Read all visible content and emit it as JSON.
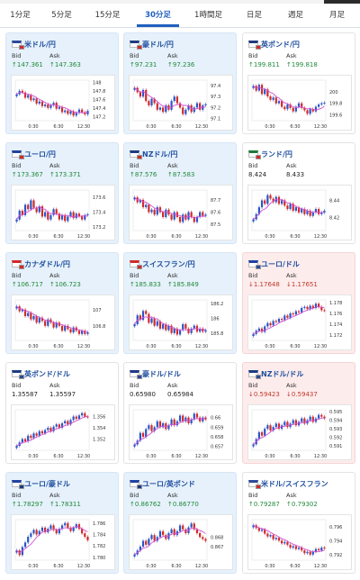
{
  "tabs": [
    {
      "label": "1分足",
      "active": false
    },
    {
      "label": "5分足",
      "active": false
    },
    {
      "label": "15分足",
      "active": false
    },
    {
      "label": "30分足",
      "active": true
    },
    {
      "label": "1時間足",
      "active": false
    },
    {
      "label": "日足",
      "active": false
    },
    {
      "label": "週足",
      "active": false
    },
    {
      "label": "月足",
      "active": false
    }
  ],
  "labels": {
    "bid": "Bid",
    "ask": "Ask"
  },
  "colors": {
    "up": "#1f8a3a",
    "down": "#c0392b",
    "candle_up": "#2a55c6",
    "candle_down": "#d22a2a",
    "ma": "#d24fd2"
  },
  "cards": [
    {
      "name": "米ドル/円",
      "bid": "↑147.361",
      "ask": "↑147.363",
      "dir": "up",
      "theme": "blue",
      "flag": "us-jp",
      "chart": {
        "yticks": [
          "148",
          "147.8",
          "147.6",
          "147.4",
          "147.2"
        ],
        "xticks": [
          "0:30",
          "6:30",
          "12:30"
        ],
        "closes": [
          147.72,
          147.8,
          147.76,
          147.64,
          147.7,
          147.58,
          147.62,
          147.5,
          147.55,
          147.44,
          147.48,
          147.4,
          147.46,
          147.52,
          147.38,
          147.42,
          147.3,
          147.34,
          147.26,
          147.32,
          147.22,
          147.28,
          147.36,
          147.3,
          147.25,
          147.33
        ],
        "ylim": [
          147.1,
          148.05
        ]
      }
    },
    {
      "name": "豪ドル/円",
      "bid": "↑97.231",
      "ask": "↑97.236",
      "dir": "up",
      "theme": "blue",
      "flag": "au-jp",
      "chart": {
        "yticks": [
          "97.4",
          "97.3",
          "97.2",
          "97.1"
        ],
        "xticks": [
          "0:30",
          "6:30",
          "12:30"
        ],
        "closes": [
          97.38,
          97.34,
          97.3,
          97.36,
          97.26,
          97.22,
          97.28,
          97.24,
          97.18,
          97.2,
          97.16,
          97.22,
          97.18,
          97.26,
          97.3,
          97.24,
          97.2,
          97.14,
          97.18,
          97.22,
          97.16,
          97.2,
          97.24,
          97.18,
          97.22,
          97.23
        ],
        "ylim": [
          97.08,
          97.45
        ]
      }
    },
    {
      "name": "英ポンド/円",
      "bid": "↑199.811",
      "ask": "↑199.818",
      "dir": "up",
      "theme": "white",
      "flag": "gb-jp",
      "chart": {
        "yticks": [
          "200",
          "199.8",
          "199.6"
        ],
        "xticks": [
          "0:30",
          "6:30",
          "12:30"
        ],
        "closes": [
          200.1,
          200.02,
          200.12,
          199.96,
          200.04,
          199.92,
          199.86,
          199.9,
          199.8,
          199.84,
          199.74,
          199.7,
          199.78,
          199.72,
          199.66,
          199.74,
          199.8,
          199.72,
          199.68,
          199.62,
          199.7,
          199.66,
          199.74,
          199.78,
          199.8,
          199.81
        ],
        "ylim": [
          199.5,
          200.2
        ]
      }
    },
    {
      "name": "ユーロ/円",
      "bid": "↑173.367",
      "ask": "↑173.371",
      "dir": "up",
      "theme": "blue",
      "flag": "eu-jp",
      "chart": {
        "yticks": [
          "173.6",
          "173.4",
          "173.2"
        ],
        "xticks": [
          "0:30",
          "6:30",
          "12:30"
        ],
        "closes": [
          173.3,
          173.42,
          173.36,
          173.5,
          173.44,
          173.56,
          173.46,
          173.4,
          173.48,
          173.34,
          173.4,
          173.3,
          173.36,
          173.44,
          173.38,
          173.3,
          173.36,
          173.28,
          173.34,
          173.4,
          173.32,
          173.38,
          173.34,
          173.3,
          173.36,
          173.37
        ],
        "ylim": [
          173.15,
          173.7
        ]
      }
    },
    {
      "name": "NZドル/円",
      "bid": "↑87.576",
      "ask": "↑87.583",
      "dir": "up",
      "theme": "blue",
      "flag": "nz-jp",
      "chart": {
        "yticks": [
          "87.7",
          "87.6",
          "87.5"
        ],
        "xticks": [
          "0:30",
          "6:30",
          "12:30"
        ],
        "closes": [
          87.72,
          87.68,
          87.7,
          87.64,
          87.66,
          87.6,
          87.62,
          87.58,
          87.64,
          87.6,
          87.56,
          87.62,
          87.58,
          87.54,
          87.6,
          87.56,
          87.52,
          87.58,
          87.54,
          87.6,
          87.56,
          87.52,
          87.56,
          87.6,
          87.57,
          87.58
        ],
        "ylim": [
          87.45,
          87.78
        ]
      }
    },
    {
      "name": "ランド/円",
      "bid": "8.424",
      "ask": "8.433",
      "dir": "none",
      "theme": "white",
      "flag": "za-jp",
      "chart": {
        "yticks": [
          "8.44",
          "8.42"
        ],
        "xticks": [
          "0:30",
          "6:30",
          "12:30"
        ],
        "closes": [
          8.418,
          8.424,
          8.432,
          8.44,
          8.436,
          8.446,
          8.442,
          8.438,
          8.444,
          8.436,
          8.44,
          8.434,
          8.43,
          8.436,
          8.428,
          8.432,
          8.426,
          8.43,
          8.424,
          8.428,
          8.422,
          8.426,
          8.43,
          8.424,
          8.426,
          8.428
        ],
        "ylim": [
          8.405,
          8.452
        ]
      }
    },
    {
      "name": "カナダドル/円",
      "bid": "↑106.717",
      "ask": "↑106.723",
      "dir": "up",
      "theme": "blue",
      "flag": "ca-jp",
      "chart": {
        "yticks": [
          "107",
          "106.8"
        ],
        "xticks": [
          "0:30",
          "6:30",
          "12:30"
        ],
        "closes": [
          107.04,
          106.98,
          107.0,
          106.92,
          106.96,
          106.88,
          106.92,
          106.84,
          106.9,
          106.86,
          106.8,
          106.88,
          106.84,
          106.78,
          106.84,
          106.8,
          106.74,
          106.8,
          106.76,
          106.72,
          106.78,
          106.74,
          106.7,
          106.74,
          106.7,
          106.72
        ],
        "ylim": [
          106.62,
          107.12
        ]
      }
    },
    {
      "name": "スイスフラン/円",
      "bid": "↑185.833",
      "ask": "↑185.849",
      "dir": "up",
      "theme": "blue",
      "flag": "ch-jp",
      "chart": {
        "yticks": [
          "186.2",
          "186",
          "185.8"
        ],
        "xticks": [
          "0:30",
          "6:30",
          "12:30"
        ],
        "closes": [
          185.92,
          186.04,
          185.98,
          186.1,
          186.06,
          185.94,
          186.0,
          185.9,
          185.96,
          185.86,
          185.92,
          185.84,
          185.9,
          185.8,
          185.86,
          185.78,
          185.84,
          185.92,
          185.86,
          185.8,
          185.86,
          185.9,
          185.82,
          185.86,
          185.82,
          185.84
        ],
        "ylim": [
          185.7,
          186.25
        ]
      }
    },
    {
      "name": "ユーロ/ドル",
      "bid": "↓1.17648",
      "ask": "↓1.17651",
      "dir": "down",
      "theme": "red",
      "flag": "eu-us",
      "chart": {
        "yticks": [
          "1.178",
          "1.176",
          "1.174",
          "1.172"
        ],
        "xticks": [
          "0:30",
          "6:30",
          "12:30"
        ],
        "closes": [
          1.1722,
          1.1728,
          1.1732,
          1.1726,
          1.1736,
          1.1742,
          1.1738,
          1.1746,
          1.1744,
          1.175,
          1.1748,
          1.1756,
          1.1752,
          1.176,
          1.1758,
          1.1764,
          1.1762,
          1.177,
          1.1772,
          1.1768,
          1.1774,
          1.177,
          1.1778,
          1.1772,
          1.1766,
          1.1765
        ],
        "ylim": [
          1.171,
          1.1785
        ]
      }
    },
    {
      "name": "英ポンド/ドル",
      "bid": "1.35587",
      "ask": "1.35597",
      "dir": "none",
      "theme": "white",
      "flag": "gb-us",
      "chart": {
        "yticks": [
          "1.356",
          "1.354",
          "1.352"
        ],
        "xticks": [
          "0:30",
          "6:30",
          "12:30"
        ],
        "closes": [
          1.3508,
          1.3514,
          1.352,
          1.3516,
          1.3526,
          1.3522,
          1.353,
          1.3526,
          1.3534,
          1.353,
          1.3536,
          1.354,
          1.3534,
          1.3542,
          1.3546,
          1.354,
          1.3548,
          1.3552,
          1.3546,
          1.3554,
          1.356,
          1.3556,
          1.3562,
          1.3566,
          1.356,
          1.3559
        ],
        "ylim": [
          1.35,
          1.3572
        ]
      }
    },
    {
      "name": "豪ドル/ドル",
      "bid": "0.65980",
      "ask": "0.65984",
      "dir": "none",
      "theme": "white",
      "flag": "au-us",
      "chart": {
        "yticks": [
          "0.66",
          "0.659",
          "0.658",
          "0.657"
        ],
        "xticks": [
          "0:30",
          "6:30",
          "12:30"
        ],
        "closes": [
          0.6572,
          0.6576,
          0.6584,
          0.658,
          0.6588,
          0.6592,
          0.6586,
          0.659,
          0.6596,
          0.659,
          0.6594,
          0.6588,
          0.6592,
          0.6598,
          0.6592,
          0.6596,
          0.6602,
          0.6596,
          0.66,
          0.6594,
          0.6598,
          0.6604,
          0.66,
          0.6596,
          0.66,
          0.6598
        ],
        "ylim": [
          0.6566,
          0.6608
        ]
      }
    },
    {
      "name": "NZドル/ドル",
      "bid": "↓0.59423",
      "ask": "↓0.59437",
      "dir": "down",
      "theme": "red",
      "flag": "nz-us",
      "chart": {
        "yticks": [
          "0.595",
          "0.594",
          "0.593",
          "0.592",
          "0.591"
        ],
        "xticks": [
          "0:30",
          "6:30",
          "12:30"
        ],
        "closes": [
          0.5912,
          0.5918,
          0.5926,
          0.5922,
          0.593,
          0.5934,
          0.5928,
          0.5932,
          0.5936,
          0.593,
          0.5934,
          0.5938,
          0.5932,
          0.5936,
          0.594,
          0.5934,
          0.5938,
          0.5942,
          0.5936,
          0.594,
          0.5944,
          0.5938,
          0.5942,
          0.5946,
          0.5944,
          0.5942
        ],
        "ylim": [
          0.5905,
          0.5952
        ]
      }
    },
    {
      "name": "ユーロ/豪ドル",
      "bid": "↑1.78297",
      "ask": "↑1.78311",
      "dir": "up",
      "theme": "blue",
      "flag": "eu-au",
      "chart": {
        "yticks": [
          "1.786",
          "1.784",
          "1.782",
          "1.780"
        ],
        "xticks": [
          "0:30",
          "6:30",
          "12:30"
        ],
        "closes": [
          1.7812,
          1.7804,
          1.7818,
          1.7826,
          1.7836,
          1.7842,
          1.7848,
          1.784,
          1.7846,
          1.7852,
          1.7844,
          1.785,
          1.7856,
          1.7848,
          1.7842,
          1.785,
          1.7856,
          1.786,
          1.7852,
          1.7846,
          1.7852,
          1.7858,
          1.785,
          1.7842,
          1.7836,
          1.783
        ],
        "ylim": [
          1.7795,
          1.7866
        ]
      }
    },
    {
      "name": "ユーロ/英ポンド",
      "bid": "↑0.86762",
      "ask": "↑0.86770",
      "dir": "up",
      "theme": "blue",
      "flag": "eu-gb",
      "chart": {
        "yticks": [
          "0.868",
          "0.867"
        ],
        "xticks": [
          "0:30",
          "6:30",
          "12:30"
        ],
        "closes": [
          0.8662,
          0.8666,
          0.867,
          0.8676,
          0.8672,
          0.8678,
          0.8682,
          0.8676,
          0.868,
          0.8686,
          0.8682,
          0.8678,
          0.8684,
          0.8688,
          0.8682,
          0.8686,
          0.8692,
          0.8688,
          0.8684,
          0.869,
          0.8694,
          0.8688,
          0.8684,
          0.868,
          0.8678,
          0.8676
        ],
        "ylim": [
          0.8656,
          0.8698
        ]
      }
    },
    {
      "name": "米ドル/スイスフラン",
      "bid": "↑0.79287",
      "ask": "↑0.79302",
      "dir": "up",
      "theme": "white",
      "flag": "us-ch",
      "chart": {
        "yticks": [
          "0.796",
          "0.794",
          "0.792"
        ],
        "xticks": [
          "0:30",
          "6:30",
          "12:30"
        ],
        "closes": [
          0.7962,
          0.7958,
          0.7954,
          0.7956,
          0.795,
          0.7946,
          0.7948,
          0.7942,
          0.7944,
          0.794,
          0.7936,
          0.7938,
          0.7934,
          0.793,
          0.7932,
          0.7928,
          0.793,
          0.7926,
          0.7922,
          0.7924,
          0.792,
          0.7924,
          0.7928,
          0.7926,
          0.793,
          0.7929
        ],
        "ylim": [
          0.7912,
          0.797
        ]
      }
    }
  ]
}
